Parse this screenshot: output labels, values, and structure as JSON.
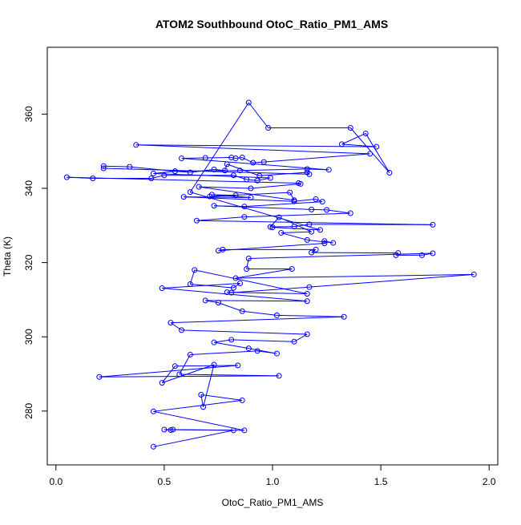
{
  "chart_data": {
    "type": "line",
    "title": "ATOM2 Southbound OtoC_Ratio_PM1_AMS",
    "xlabel": "OtoC_Ratio_PM1_AMS",
    "ylabel": "Theta (K)",
    "xlim": [
      -0.04,
      2.04
    ],
    "ylim": [
      265.5,
      378
    ],
    "xticks": [
      0.0,
      0.5,
      1.0,
      1.5,
      2.0
    ],
    "xtick_labels": [
      "0.0",
      "0.5",
      "1.0",
      "1.5",
      "2.0"
    ],
    "yticks": [
      280,
      300,
      320,
      340,
      360
    ],
    "ytick_labels": [
      "280",
      "300",
      "320",
      "340",
      "360"
    ],
    "grid": false,
    "legend": "none",
    "series": [
      {
        "name": "",
        "color": "#0000ff",
        "marker": "open-circle",
        "points": [
          [
            0.45,
            270.4
          ],
          [
            0.82,
            274.8
          ],
          [
            0.5,
            275.0
          ],
          [
            0.53,
            274.9
          ],
          [
            0.54,
            275.0
          ],
          [
            0.87,
            274.8
          ],
          [
            0.45,
            279.9
          ],
          [
            0.86,
            282.9
          ],
          [
            0.67,
            284.4
          ],
          [
            0.68,
            281.1
          ],
          [
            0.73,
            292.5
          ],
          [
            0.49,
            287.6
          ],
          [
            0.55,
            292.1
          ],
          [
            0.84,
            292.3
          ],
          [
            0.2,
            289.2
          ],
          [
            1.03,
            289.5
          ],
          [
            0.57,
            289.9
          ],
          [
            0.62,
            295.2
          ],
          [
            0.93,
            296.2
          ],
          [
            1.02,
            295.5
          ],
          [
            0.89,
            296.9
          ],
          [
            0.73,
            298.5
          ],
          [
            0.81,
            299.2
          ],
          [
            1.1,
            298.7
          ],
          [
            1.16,
            300.7
          ],
          [
            0.58,
            301.8
          ],
          [
            0.53,
            303.8
          ],
          [
            1.33,
            305.4
          ],
          [
            1.02,
            305.8
          ],
          [
            0.86,
            306.9
          ],
          [
            0.75,
            309.2
          ],
          [
            0.69,
            309.8
          ],
          [
            1.16,
            309.6
          ],
          [
            0.49,
            313.1
          ],
          [
            0.85,
            314.4
          ],
          [
            0.82,
            313.2
          ],
          [
            0.62,
            314.2
          ],
          [
            0.64,
            318.0
          ],
          [
            1.16,
            311.6
          ],
          [
            0.79,
            312.0
          ],
          [
            0.81,
            311.9
          ],
          [
            1.17,
            313.4
          ],
          [
            1.93,
            316.8
          ],
          [
            0.83,
            315.8
          ],
          [
            1.09,
            318.3
          ],
          [
            0.88,
            318.3
          ],
          [
            0.89,
            321.1
          ],
          [
            1.74,
            322.5
          ],
          [
            1.69,
            322.0
          ],
          [
            1.57,
            322.0
          ],
          [
            1.58,
            322.6
          ],
          [
            1.18,
            322.7
          ],
          [
            1.2,
            323.5
          ],
          [
            0.77,
            323.5
          ],
          [
            0.75,
            323.2
          ],
          [
            1.24,
            325.2
          ],
          [
            1.24,
            325.8
          ],
          [
            1.28,
            325.3
          ],
          [
            1.16,
            326.1
          ],
          [
            1.04,
            328.0
          ],
          [
            1.18,
            328.3
          ],
          [
            1.03,
            332.2
          ],
          [
            0.99,
            329.6
          ],
          [
            1.1,
            329.7
          ],
          [
            1.17,
            330.3
          ],
          [
            1.74,
            330.2
          ],
          [
            0.65,
            331.3
          ],
          [
            0.87,
            332.3
          ],
          [
            1.36,
            333.3
          ],
          [
            1.25,
            334.2
          ],
          [
            1.18,
            334.3
          ],
          [
            0.73,
            335.3
          ],
          [
            0.87,
            335.1
          ],
          [
            1.23,
            336.4
          ],
          [
            1.2,
            337.1
          ],
          [
            1.1,
            336.5
          ],
          [
            0.59,
            337.7
          ],
          [
            0.9,
            337.5
          ],
          [
            0.72,
            338.3
          ],
          [
            0.83,
            338.1
          ],
          [
            0.71,
            337.8
          ],
          [
            1.08,
            338.9
          ],
          [
            1.1,
            336.8
          ],
          [
            0.66,
            340.4
          ],
          [
            0.9,
            340.0
          ],
          [
            1.13,
            341.2
          ],
          [
            1.12,
            341.4
          ],
          [
            0.05,
            343.0
          ],
          [
            0.17,
            342.7
          ],
          [
            0.44,
            342.7
          ],
          [
            0.5,
            343.5
          ],
          [
            0.82,
            343.5
          ],
          [
            0.88,
            342.4
          ],
          [
            0.93,
            342.1
          ],
          [
            0.99,
            342.8
          ],
          [
            0.45,
            344.0
          ],
          [
            0.55,
            344.6
          ],
          [
            0.62,
            344.3
          ],
          [
            0.73,
            345.1
          ],
          [
            0.78,
            344.8
          ],
          [
            0.79,
            346.5
          ],
          [
            0.94,
            343.4
          ],
          [
            1.16,
            344.3
          ],
          [
            1.17,
            343.8
          ],
          [
            0.22,
            345.4
          ],
          [
            0.22,
            346.0
          ],
          [
            0.34,
            345.8
          ],
          [
            0.55,
            344.6
          ],
          [
            0.85,
            344.8
          ],
          [
            1.16,
            345.2
          ],
          [
            1.26,
            345.0
          ],
          [
            0.58,
            348.1
          ],
          [
            0.69,
            348.2
          ],
          [
            0.81,
            348.3
          ],
          [
            0.83,
            348.1
          ],
          [
            0.86,
            348.3
          ],
          [
            0.91,
            346.9
          ],
          [
            0.96,
            347.1
          ],
          [
            1.45,
            349.3
          ],
          [
            0.37,
            351.7
          ],
          [
            1.48,
            351.2
          ],
          [
            1.32,
            351.9
          ],
          [
            1.43,
            354.8
          ],
          [
            1.54,
            344.2
          ],
          [
            1.36,
            356.3
          ],
          [
            0.98,
            356.3
          ],
          [
            0.89,
            363.1
          ],
          [
            0.62,
            339.0
          ],
          [
            1.22,
            328.8
          ],
          [
            1.0,
            329.5
          ]
        ]
      }
    ]
  }
}
